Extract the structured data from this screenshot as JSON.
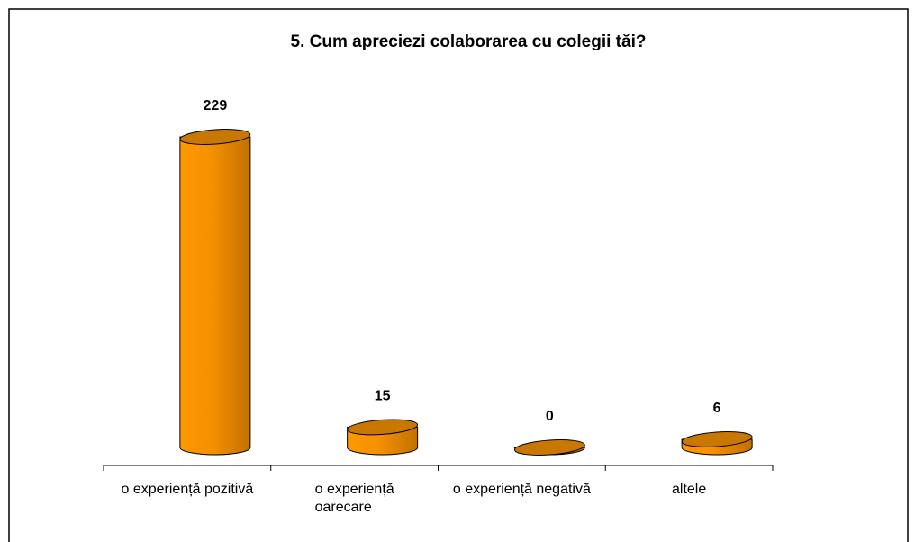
{
  "chart_data": {
    "type": "bar",
    "title": "5. Cum apreciezi colaborarea cu colegii tăi?",
    "categories": [
      "o experiență pozitivă",
      "o experiență\noarecare",
      "o experiență negativă",
      "altele"
    ],
    "values": [
      229,
      15,
      0,
      6
    ],
    "color": "#ff9900"
  }
}
